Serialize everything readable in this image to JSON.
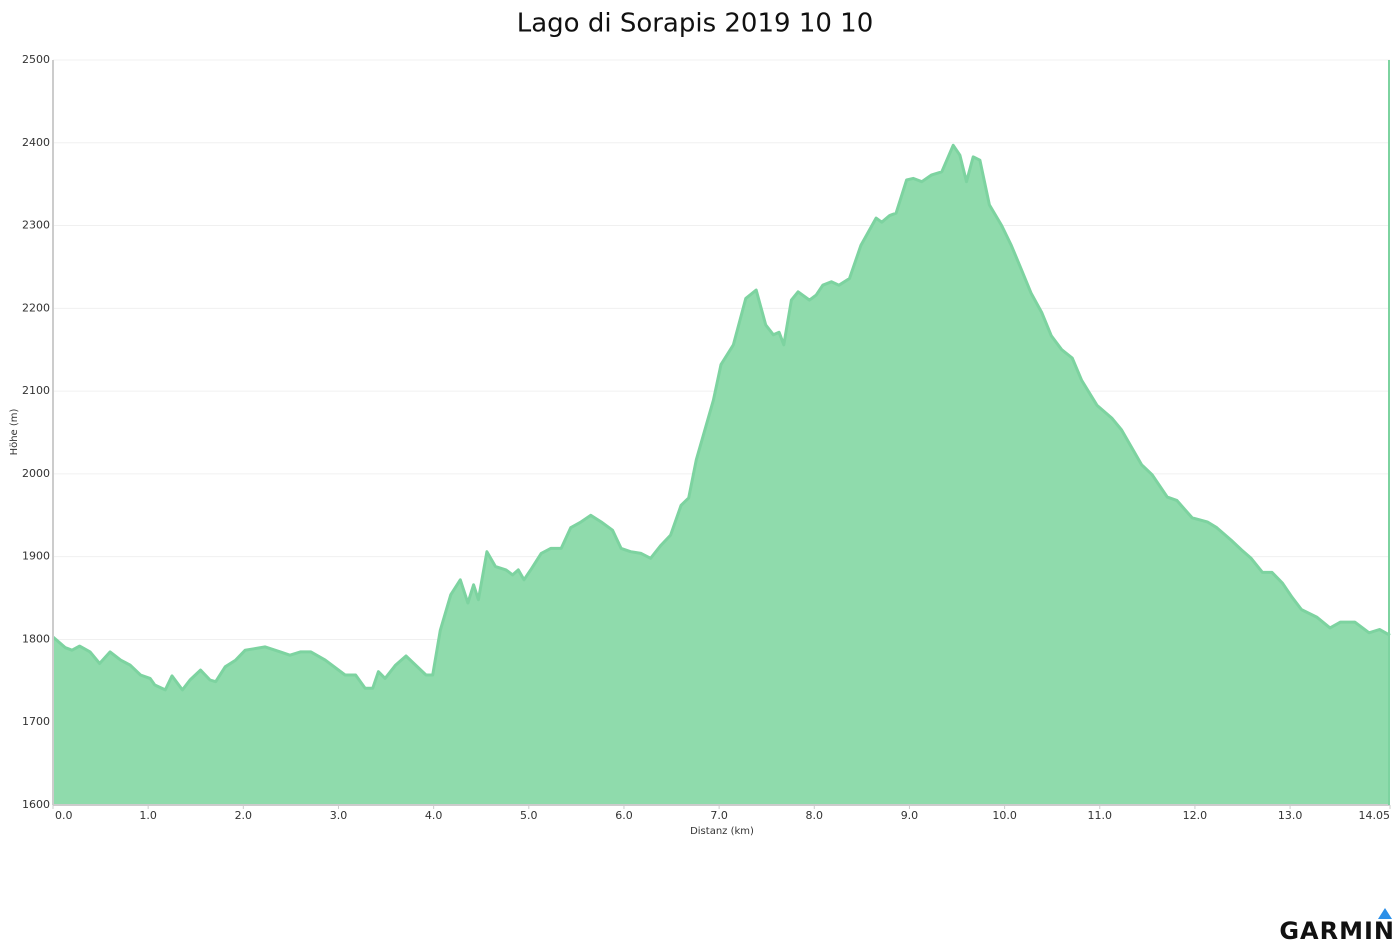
{
  "chart_data": {
    "type": "area",
    "title": "Lago di Sorapis 2019 10 10",
    "x_label": "Distanz   (km)",
    "y_label": "Höhe (m)",
    "logo": "GARMIN",
    "color": "#8fdbac",
    "line_color": "#7dd3a0",
    "grid": true,
    "xlim": [
      0,
      14.05
    ],
    "ylim": [
      1600,
      2500
    ],
    "xticks": [
      {
        "value": 0,
        "label": "0.0"
      },
      {
        "value": 1,
        "label": "1.0"
      },
      {
        "value": 2,
        "label": "2.0"
      },
      {
        "value": 3,
        "label": "3.0"
      },
      {
        "value": 4,
        "label": "4.0"
      },
      {
        "value": 5,
        "label": "5.0"
      },
      {
        "value": 6,
        "label": "6.0"
      },
      {
        "value": 7,
        "label": "7.0"
      },
      {
        "value": 8,
        "label": "8.0"
      },
      {
        "value": 9,
        "label": "9.0"
      },
      {
        "value": 10,
        "label": "10.0"
      },
      {
        "value": 11,
        "label": "11.0"
      },
      {
        "value": 12,
        "label": "12.0"
      },
      {
        "value": 13,
        "label": "13.0"
      },
      14.05
    ],
    "yticks": [
      1600,
      1700,
      1800,
      1900,
      2000,
      2100,
      2200,
      2300,
      2400,
      2500
    ],
    "x": [
      0.0,
      0.05,
      0.13,
      0.2,
      0.28,
      0.39,
      0.49,
      0.6,
      0.71,
      0.81,
      0.92,
      1.02,
      1.07,
      1.18,
      1.25,
      1.36,
      1.44,
      1.55,
      1.65,
      1.71,
      1.81,
      1.92,
      2.02,
      2.23,
      2.39,
      2.49,
      2.6,
      2.71,
      2.86,
      3.07,
      3.18,
      3.28,
      3.36,
      3.42,
      3.49,
      3.6,
      3.71,
      3.81,
      3.92,
      3.99,
      4.07,
      4.18,
      4.28,
      4.36,
      4.42,
      4.47,
      4.56,
      4.65,
      4.76,
      4.83,
      4.89,
      4.95,
      5.02,
      5.13,
      5.23,
      5.34,
      5.44,
      5.55,
      5.65,
      5.76,
      5.88,
      5.97,
      6.07,
      6.18,
      6.28,
      6.39,
      6.49,
      6.6,
      6.68,
      6.76,
      6.86,
      6.94,
      7.02,
      7.15,
      7.28,
      7.39,
      7.49,
      7.57,
      7.63,
      7.68,
      7.76,
      7.83,
      7.95,
      8.02,
      8.09,
      8.18,
      8.26,
      8.37,
      8.49,
      8.65,
      8.71,
      8.79,
      8.86,
      8.97,
      9.04,
      9.13,
      9.23,
      9.34,
      9.46,
      9.53,
      9.6,
      9.67,
      9.74,
      9.84,
      9.97,
      10.07,
      10.18,
      10.28,
      10.39,
      10.49,
      10.6,
      10.71,
      10.81,
      10.97,
      11.13,
      11.23,
      11.34,
      11.44,
      11.55,
      11.71,
      11.81,
      11.97,
      12.13,
      12.23,
      12.38,
      12.49,
      12.59,
      12.71,
      12.81,
      12.92,
      13.02,
      13.12,
      13.28,
      13.42,
      13.53,
      13.68,
      13.83,
      13.94,
      14.05
    ],
    "values": [
      1803,
      1798,
      1790,
      1787,
      1792,
      1785,
      1771,
      1785,
      1775,
      1769,
      1757,
      1753,
      1745,
      1739,
      1756,
      1739,
      1751,
      1763,
      1751,
      1749,
      1767,
      1775,
      1787,
      1791,
      1785,
      1781,
      1785,
      1785,
      1775,
      1757,
      1757,
      1741,
      1741,
      1761,
      1753,
      1769,
      1780,
      1769,
      1757,
      1757,
      1811,
      1854,
      1872,
      1844,
      1866,
      1848,
      1906,
      1888,
      1884,
      1878,
      1884,
      1872,
      1884,
      1904,
      1910,
      1910,
      1935,
      1942,
      1950,
      1942,
      1932,
      1910,
      1906,
      1904,
      1898,
      1914,
      1926,
      1962,
      1971,
      2017,
      2057,
      2089,
      2132,
      2156,
      2212,
      2222,
      2180,
      2168,
      2171,
      2156,
      2210,
      2220,
      2210,
      2216,
      2228,
      2232,
      2228,
      2236,
      2276,
      2309,
      2304,
      2312,
      2315,
      2355,
      2357,
      2353,
      2361,
      2365,
      2397,
      2385,
      2353,
      2383,
      2379,
      2325,
      2300,
      2276,
      2246,
      2218,
      2195,
      2167,
      2150,
      2140,
      2113,
      2083,
      2067,
      2053,
      2031,
      2011,
      1999,
      1972,
      1968,
      1947,
      1942,
      1935,
      1920,
      1908,
      1898,
      1881,
      1881,
      1868,
      1851,
      1836,
      1827,
      1814,
      1821,
      1821,
      1808,
      1812,
      1805
    ]
  }
}
